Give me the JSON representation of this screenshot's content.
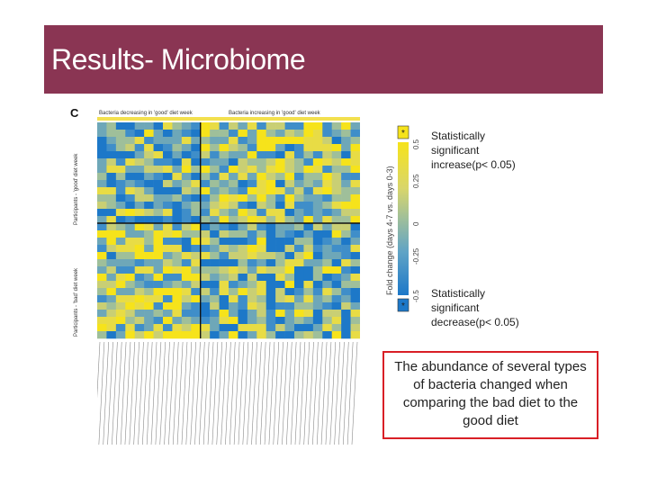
{
  "slide": {
    "title": "Results- Microbiome",
    "colors": {
      "banner": "#8a3553",
      "callout_border": "#d91f26"
    }
  },
  "figure": {
    "panel_letter": "C",
    "column_header_left": "Bacteria decreasing in 'good' diet week",
    "column_header_right": "Bacteria increasing in 'good' diet week",
    "row_label_top": "Participants - 'good' diet week",
    "row_label_bottom": "Participants - 'bad' diet week"
  },
  "colorbar": {
    "axis_label": "Fold change (days 4-7 vs. days 0-3)",
    "ticks": [
      "0.5",
      "0.25",
      "0",
      "-0.25",
      "-0.5"
    ]
  },
  "annotations": {
    "increase_lines": [
      "Statistically",
      "significant",
      "increase(p< 0.05)"
    ],
    "decrease_lines": [
      "Statistically",
      "significant",
      "decrease(p< 0.05)"
    ]
  },
  "callout": {
    "text": "The abundance of several types of bacteria changed when comparing the bad diet to the good diet"
  }
}
